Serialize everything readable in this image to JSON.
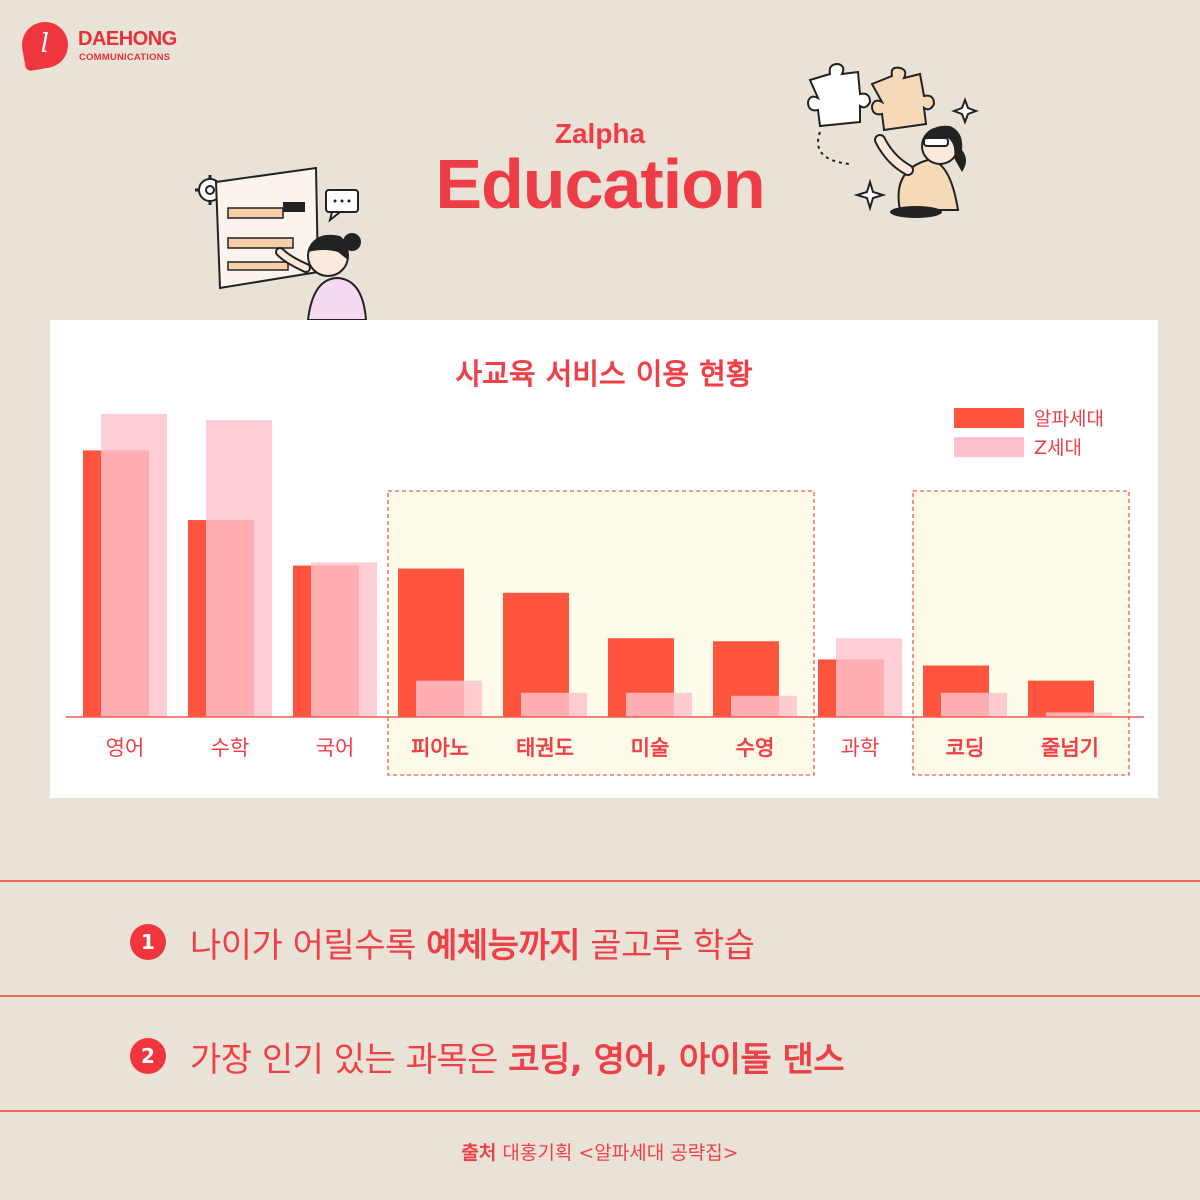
{
  "brand": {
    "logo_glyph": "l",
    "name": "DAEHONG",
    "sub": "COMMUNICATIONS",
    "color": "#e8303a"
  },
  "header": {
    "subtitle": "Zalpha",
    "title": "Education"
  },
  "chart_data": {
    "type": "bar",
    "title": "사교육 서비스 이용 현황",
    "xlabel": "",
    "ylabel": "",
    "ylim": [
      0,
      100
    ],
    "grid": false,
    "legend_position": "top-right",
    "categories": [
      "영어",
      "수학",
      "국어",
      "피아노",
      "태권도",
      "미술",
      "수영",
      "과학",
      "코딩",
      "줄넘기"
    ],
    "highlighted_categories": [
      "피아노",
      "태권도",
      "미술",
      "수영",
      "코딩",
      "줄넘기"
    ],
    "highlight_groups": [
      [
        3,
        6
      ],
      [
        8,
        9
      ]
    ],
    "series": [
      {
        "name": "알파세대",
        "color": "#ff553f",
        "values": [
          88,
          65,
          50,
          49,
          41,
          26,
          25,
          19,
          17,
          12
        ]
      },
      {
        "name": "Z세대",
        "color": "#ffc2cc",
        "values": [
          100,
          98,
          51,
          12,
          8,
          8,
          7,
          26,
          8,
          1.5
        ]
      }
    ]
  },
  "points": [
    {
      "num": "1",
      "pre": "나이가 어릴수록 ",
      "bold": "예체능까지",
      "post": " 골고루 학습"
    },
    {
      "num": "2",
      "pre": "가장 인기 있는 과목은 ",
      "bold": "코딩, 영어, 아이돌 댄스",
      "post": ""
    }
  ],
  "source": {
    "label": "출처",
    "text": "대홍기획 <알파세대 공략집>"
  }
}
